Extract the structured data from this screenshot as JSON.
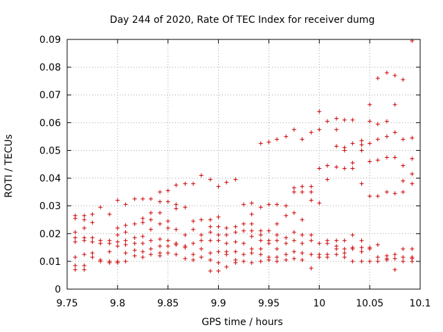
{
  "chart_data": {
    "type": "scatter",
    "title": "Day 244 of 2020, Rate Of TEC Index for receiver dumg",
    "xlabel": "GPS time / hours",
    "ylabel": "ROTI / TECUs",
    "xlim": [
      9.75,
      10.1
    ],
    "ylim": [
      0,
      0.09
    ],
    "xticks": [
      "9.75",
      "9.8",
      "9.85",
      "9.9",
      "9.95",
      "10",
      "10.05",
      "10.1"
    ],
    "yticks": [
      "0",
      "0.01",
      "0.02",
      "0.03",
      "0.04",
      "0.05",
      "0.06",
      "0.07",
      "0.08",
      "0.09"
    ],
    "grid": true,
    "marker": "plus",
    "marker_color": "#cc0000",
    "series": [
      {
        "points": [
          [
            9.758,
            0.0265
          ],
          [
            9.758,
            0.0255
          ],
          [
            9.758,
            0.0205
          ],
          [
            9.758,
            0.0185
          ],
          [
            9.758,
            0.017
          ],
          [
            9.758,
            0.0115
          ],
          [
            9.758,
            0.0085
          ],
          [
            9.758,
            0.007
          ],
          [
            9.767,
            0.0265
          ],
          [
            9.767,
            0.025
          ],
          [
            9.767,
            0.022
          ],
          [
            9.767,
            0.0185
          ],
          [
            9.767,
            0.0175
          ],
          [
            9.767,
            0.0125
          ],
          [
            9.767,
            0.0085
          ],
          [
            9.767,
            0.007
          ],
          [
            9.775,
            0.027
          ],
          [
            9.775,
            0.024
          ],
          [
            9.775,
            0.0185
          ],
          [
            9.775,
            0.017
          ],
          [
            9.775,
            0.013
          ],
          [
            9.775,
            0.0115
          ],
          [
            9.783,
            0.0295
          ],
          [
            9.783,
            0.0175
          ],
          [
            9.783,
            0.0165
          ],
          [
            9.783,
            0.0105
          ],
          [
            9.783,
            0.01
          ],
          [
            9.792,
            0.027
          ],
          [
            9.792,
            0.0175
          ],
          [
            9.792,
            0.0165
          ],
          [
            9.792,
            0.0135
          ],
          [
            9.792,
            0.01
          ],
          [
            9.792,
            0.0095
          ],
          [
            9.8,
            0.032
          ],
          [
            9.8,
            0.022
          ],
          [
            9.8,
            0.0195
          ],
          [
            9.8,
            0.017
          ],
          [
            9.8,
            0.0155
          ],
          [
            9.8,
            0.01
          ],
          [
            9.8,
            0.0095
          ],
          [
            9.808,
            0.0305
          ],
          [
            9.808,
            0.023
          ],
          [
            9.808,
            0.0205
          ],
          [
            9.808,
            0.0175
          ],
          [
            9.808,
            0.016
          ],
          [
            9.808,
            0.013
          ],
          [
            9.808,
            0.01
          ],
          [
            9.817,
            0.0325
          ],
          [
            9.817,
            0.0235
          ],
          [
            9.817,
            0.0185
          ],
          [
            9.817,
            0.0165
          ],
          [
            9.817,
            0.014
          ],
          [
            9.817,
            0.012
          ],
          [
            9.825,
            0.0325
          ],
          [
            9.825,
            0.0255
          ],
          [
            9.825,
            0.024
          ],
          [
            9.825,
            0.019
          ],
          [
            9.825,
            0.0165
          ],
          [
            9.825,
            0.0135
          ],
          [
            9.825,
            0.0115
          ],
          [
            9.833,
            0.0325
          ],
          [
            9.833,
            0.0275
          ],
          [
            9.833,
            0.025
          ],
          [
            9.833,
            0.0215
          ],
          [
            9.833,
            0.0175
          ],
          [
            9.833,
            0.0145
          ],
          [
            9.833,
            0.0125
          ],
          [
            9.842,
            0.035
          ],
          [
            9.842,
            0.0315
          ],
          [
            9.842,
            0.0275
          ],
          [
            9.842,
            0.0235
          ],
          [
            9.842,
            0.018
          ],
          [
            9.842,
            0.0155
          ],
          [
            9.842,
            0.013
          ],
          [
            9.842,
            0.012
          ],
          [
            9.85,
            0.0355
          ],
          [
            9.85,
            0.0315
          ],
          [
            9.85,
            0.0245
          ],
          [
            9.85,
            0.022
          ],
          [
            9.85,
            0.0175
          ],
          [
            9.85,
            0.0155
          ],
          [
            9.85,
            0.013
          ],
          [
            9.858,
            0.0375
          ],
          [
            9.858,
            0.0305
          ],
          [
            9.858,
            0.029
          ],
          [
            9.858,
            0.0215
          ],
          [
            9.858,
            0.0165
          ],
          [
            9.858,
            0.016
          ],
          [
            9.858,
            0.0125
          ],
          [
            9.867,
            0.038
          ],
          [
            9.867,
            0.0295
          ],
          [
            9.867,
            0.0195
          ],
          [
            9.867,
            0.0155
          ],
          [
            9.867,
            0.015
          ],
          [
            9.867,
            0.011
          ],
          [
            9.875,
            0.038
          ],
          [
            9.875,
            0.0245
          ],
          [
            9.875,
            0.0215
          ],
          [
            9.875,
            0.0165
          ],
          [
            9.875,
            0.0125
          ],
          [
            9.875,
            0.0105
          ],
          [
            9.883,
            0.041
          ],
          [
            9.883,
            0.025
          ],
          [
            9.883,
            0.0195
          ],
          [
            9.883,
            0.0175
          ],
          [
            9.883,
            0.0145
          ],
          [
            9.883,
            0.0115
          ],
          [
            9.892,
            0.0395
          ],
          [
            9.892,
            0.025
          ],
          [
            9.892,
            0.0225
          ],
          [
            9.892,
            0.0205
          ],
          [
            9.892,
            0.0175
          ],
          [
            9.892,
            0.013
          ],
          [
            9.892,
            0.0105
          ],
          [
            9.892,
            0.0065
          ],
          [
            9.9,
            0.037
          ],
          [
            9.9,
            0.026
          ],
          [
            9.9,
            0.0225
          ],
          [
            9.9,
            0.0195
          ],
          [
            9.9,
            0.0175
          ],
          [
            9.9,
            0.0135
          ],
          [
            9.9,
            0.0095
          ],
          [
            9.9,
            0.0065
          ],
          [
            9.908,
            0.0385
          ],
          [
            9.908,
            0.022
          ],
          [
            9.908,
            0.0195
          ],
          [
            9.908,
            0.0165
          ],
          [
            9.908,
            0.0135
          ],
          [
            9.908,
            0.0125
          ],
          [
            9.908,
            0.008
          ],
          [
            9.917,
            0.0395
          ],
          [
            9.917,
            0.0225
          ],
          [
            9.917,
            0.0205
          ],
          [
            9.917,
            0.017
          ],
          [
            9.917,
            0.0135
          ],
          [
            9.917,
            0.0105
          ],
          [
            9.917,
            0.0095
          ],
          [
            9.925,
            0.0305
          ],
          [
            9.925,
            0.0235
          ],
          [
            9.925,
            0.021
          ],
          [
            9.925,
            0.0165
          ],
          [
            9.925,
            0.0125
          ],
          [
            9.925,
            0.01
          ],
          [
            9.933,
            0.031
          ],
          [
            9.933,
            0.027
          ],
          [
            9.933,
            0.0235
          ],
          [
            9.933,
            0.021
          ],
          [
            9.933,
            0.019
          ],
          [
            9.933,
            0.0145
          ],
          [
            9.933,
            0.013
          ],
          [
            9.933,
            0.0095
          ],
          [
            9.942,
            0.0525
          ],
          [
            9.942,
            0.0295
          ],
          [
            9.942,
            0.021
          ],
          [
            9.942,
            0.0195
          ],
          [
            9.942,
            0.0175
          ],
          [
            9.942,
            0.0145
          ],
          [
            9.942,
            0.0125
          ],
          [
            9.942,
            0.01
          ],
          [
            9.95,
            0.053
          ],
          [
            9.95,
            0.0305
          ],
          [
            9.95,
            0.021
          ],
          [
            9.95,
            0.0175
          ],
          [
            9.95,
            0.0165
          ],
          [
            9.95,
            0.0115
          ],
          [
            9.95,
            0.0105
          ],
          [
            9.958,
            0.054
          ],
          [
            9.958,
            0.0305
          ],
          [
            9.958,
            0.0235
          ],
          [
            9.958,
            0.0195
          ],
          [
            9.958,
            0.0175
          ],
          [
            9.958,
            0.0145
          ],
          [
            9.958,
            0.0115
          ],
          [
            9.958,
            0.01
          ],
          [
            9.967,
            0.055
          ],
          [
            9.967,
            0.03
          ],
          [
            9.967,
            0.0265
          ],
          [
            9.967,
            0.0185
          ],
          [
            9.967,
            0.0165
          ],
          [
            9.967,
            0.0125
          ],
          [
            9.967,
            0.0105
          ],
          [
            9.975,
            0.0575
          ],
          [
            9.975,
            0.0365
          ],
          [
            9.975,
            0.035
          ],
          [
            9.975,
            0.0275
          ],
          [
            9.975,
            0.0205
          ],
          [
            9.975,
            0.0175
          ],
          [
            9.975,
            0.0135
          ],
          [
            9.975,
            0.011
          ],
          [
            9.983,
            0.054
          ],
          [
            9.983,
            0.037
          ],
          [
            9.983,
            0.035
          ],
          [
            9.983,
            0.025
          ],
          [
            9.983,
            0.0195
          ],
          [
            9.983,
            0.0165
          ],
          [
            9.983,
            0.013
          ],
          [
            9.983,
            0.0105
          ],
          [
            9.992,
            0.0565
          ],
          [
            9.992,
            0.037
          ],
          [
            9.992,
            0.035
          ],
          [
            9.992,
            0.032
          ],
          [
            9.992,
            0.0195
          ],
          [
            9.992,
            0.0175
          ],
          [
            9.992,
            0.0125
          ],
          [
            9.992,
            0.0075
          ],
          [
            10.0,
            0.064
          ],
          [
            10.0,
            0.0575
          ],
          [
            10.0,
            0.0435
          ],
          [
            10.0,
            0.031
          ],
          [
            10.0,
            0.0165
          ],
          [
            10.0,
            0.0125
          ],
          [
            10.0,
            0.0115
          ],
          [
            10.008,
            0.0605
          ],
          [
            10.008,
            0.0445
          ],
          [
            10.008,
            0.0395
          ],
          [
            10.008,
            0.0175
          ],
          [
            10.008,
            0.0165
          ],
          [
            10.008,
            0.0125
          ],
          [
            10.008,
            0.0115
          ],
          [
            10.017,
            0.0615
          ],
          [
            10.017,
            0.0575
          ],
          [
            10.017,
            0.0515
          ],
          [
            10.017,
            0.044
          ],
          [
            10.017,
            0.0175
          ],
          [
            10.017,
            0.0155
          ],
          [
            10.017,
            0.0145
          ],
          [
            10.017,
            0.0125
          ],
          [
            10.025,
            0.061
          ],
          [
            10.025,
            0.051
          ],
          [
            10.025,
            0.05
          ],
          [
            10.025,
            0.0435
          ],
          [
            10.025,
            0.0175
          ],
          [
            10.025,
            0.0145
          ],
          [
            10.025,
            0.013
          ],
          [
            10.025,
            0.0115
          ],
          [
            10.033,
            0.061
          ],
          [
            10.033,
            0.0525
          ],
          [
            10.033,
            0.0455
          ],
          [
            10.033,
            0.0435
          ],
          [
            10.033,
            0.0195
          ],
          [
            10.033,
            0.015
          ],
          [
            10.033,
            0.0145
          ],
          [
            10.033,
            0.01
          ],
          [
            10.042,
            0.0535
          ],
          [
            10.042,
            0.052
          ],
          [
            10.042,
            0.05
          ],
          [
            10.042,
            0.038
          ],
          [
            10.042,
            0.0175
          ],
          [
            10.042,
            0.015
          ],
          [
            10.042,
            0.0135
          ],
          [
            10.042,
            0.01
          ],
          [
            10.05,
            0.0665
          ],
          [
            10.05,
            0.0605
          ],
          [
            10.05,
            0.0525
          ],
          [
            10.05,
            0.046
          ],
          [
            10.05,
            0.0335
          ],
          [
            10.05,
            0.015
          ],
          [
            10.05,
            0.0145
          ],
          [
            10.05,
            0.01
          ],
          [
            10.058,
            0.076
          ],
          [
            10.058,
            0.0595
          ],
          [
            10.058,
            0.054
          ],
          [
            10.058,
            0.0465
          ],
          [
            10.058,
            0.0335
          ],
          [
            10.058,
            0.016
          ],
          [
            10.058,
            0.0115
          ],
          [
            10.058,
            0.01
          ],
          [
            10.067,
            0.078
          ],
          [
            10.067,
            0.0605
          ],
          [
            10.067,
            0.055
          ],
          [
            10.067,
            0.0475
          ],
          [
            10.067,
            0.035
          ],
          [
            10.067,
            0.012
          ],
          [
            10.067,
            0.011
          ],
          [
            10.067,
            0.0105
          ],
          [
            10.075,
            0.077
          ],
          [
            10.075,
            0.0665
          ],
          [
            10.075,
            0.0565
          ],
          [
            10.075,
            0.0475
          ],
          [
            10.075,
            0.0345
          ],
          [
            10.075,
            0.0125
          ],
          [
            10.075,
            0.011
          ],
          [
            10.075,
            0.007
          ],
          [
            10.083,
            0.0755
          ],
          [
            10.083,
            0.054
          ],
          [
            10.083,
            0.0445
          ],
          [
            10.083,
            0.039
          ],
          [
            10.083,
            0.035
          ],
          [
            10.083,
            0.0145
          ],
          [
            10.083,
            0.0115
          ],
          [
            10.083,
            0.01
          ],
          [
            10.092,
            0.0895
          ],
          [
            10.092,
            0.0545
          ],
          [
            10.092,
            0.047
          ],
          [
            10.092,
            0.0415
          ],
          [
            10.092,
            0.038
          ],
          [
            10.092,
            0.0145
          ],
          [
            10.092,
            0.0115
          ],
          [
            10.092,
            0.011
          ],
          [
            10.092,
            0.01
          ]
        ]
      }
    ]
  }
}
